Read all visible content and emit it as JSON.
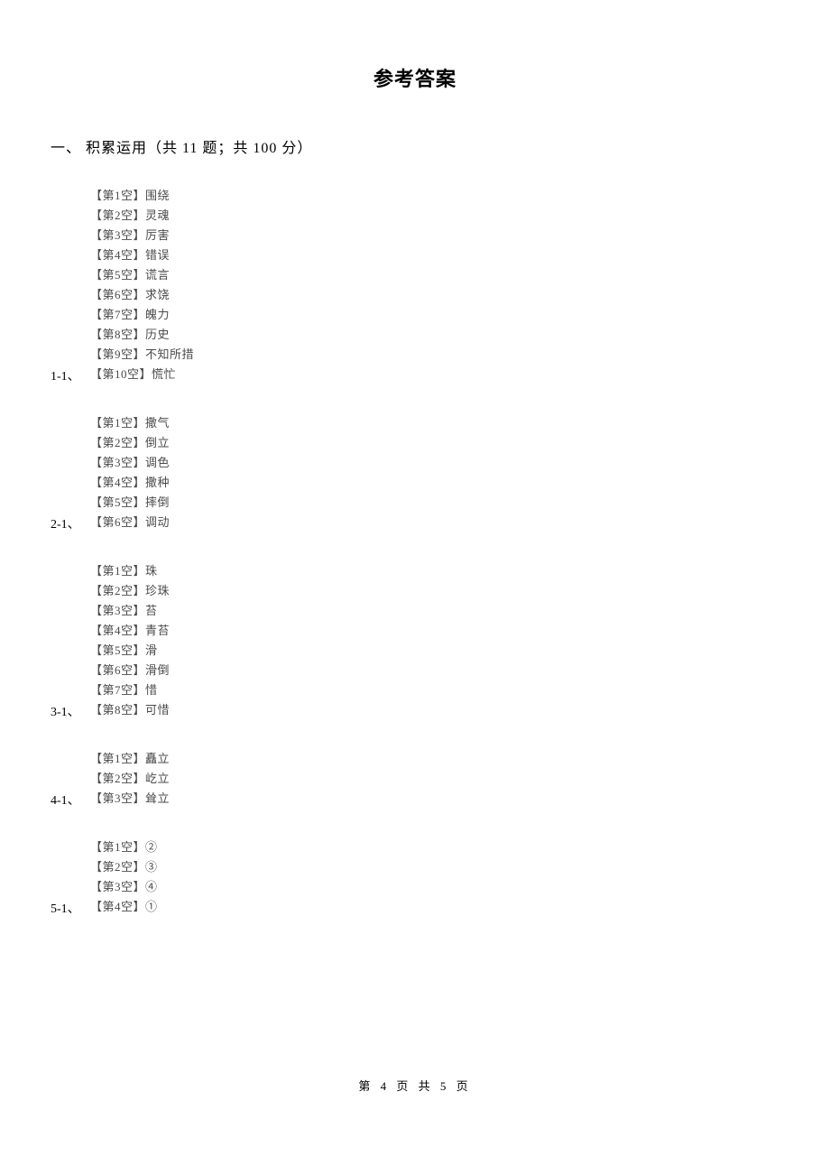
{
  "title": "参考答案",
  "section_header": "一、 积累运用（共 11 题；共 100 分）",
  "footer": "第 4 页 共 5 页",
  "blocks": [
    {
      "number": "1-1、",
      "answers": [
        "【第1空】围绕",
        "【第2空】灵魂",
        "【第3空】厉害",
        "【第4空】错误",
        "【第5空】谎言",
        "【第6空】求饶",
        "【第7空】魄力",
        "【第8空】历史",
        "【第9空】不知所措",
        "【第10空】慌忙"
      ]
    },
    {
      "number": "2-1、",
      "answers": [
        "【第1空】撒气",
        "【第2空】倒立",
        "【第3空】调色",
        "【第4空】撒种",
        "【第5空】摔倒",
        "【第6空】调动"
      ]
    },
    {
      "number": "3-1、",
      "answers": [
        "【第1空】珠",
        "【第2空】珍珠",
        "【第3空】苔",
        "【第4空】青苔",
        "【第5空】滑",
        "【第6空】滑倒",
        "【第7空】惜",
        "【第8空】可惜"
      ]
    },
    {
      "number": "4-1、",
      "answers": [
        "【第1空】矗立",
        "【第2空】屹立",
        "【第3空】耸立"
      ]
    },
    {
      "number": "5-1、",
      "answers": [
        "【第1空】②",
        "【第2空】③",
        "【第3空】④",
        "【第4空】①"
      ]
    }
  ]
}
